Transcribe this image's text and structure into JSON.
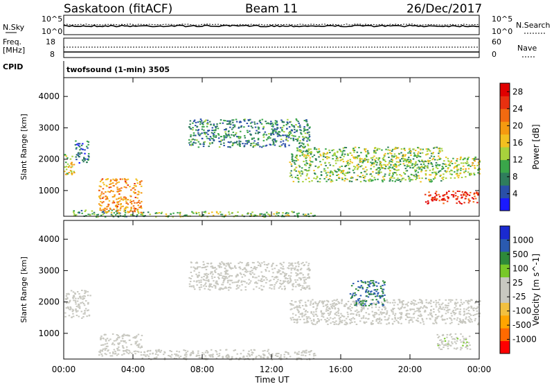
{
  "header": {
    "station": "Saskatoon (fitACF)",
    "beam": "Beam 11",
    "date": "26/Dec/2017"
  },
  "noise_panel": {
    "left_label": "N.Sky",
    "right_label": "N.Search",
    "ticks_left": [
      "10^5",
      "10^0"
    ],
    "ticks_right": [
      "10^5",
      "10^0"
    ]
  },
  "freq_panel": {
    "left_label_1": "Freq.",
    "left_label_2": "[MHz]",
    "right_label": "Nave",
    "ticks_left": [
      "18",
      "8"
    ],
    "ticks_right": [
      "60",
      "0"
    ]
  },
  "cpid_panel": {
    "label": "CPID",
    "text": "twofsound (1-min) 3505"
  },
  "axes": {
    "ylabel": "Slant Range [km]",
    "xlabel": "Time UT",
    "y_ticks": [
      "1000",
      "2000",
      "3000",
      "4000"
    ],
    "x_ticks": [
      "00:00",
      "04:00",
      "08:00",
      "12:00",
      "16:00",
      "20:00",
      "00:00"
    ]
  },
  "colors": {
    "power_scale": [
      "#1a1aff",
      "#2a4fa8",
      "#2f7d5c",
      "#3aa64a",
      "#a8d23c",
      "#f2c020",
      "#f59a10",
      "#f26a10",
      "#e83010",
      "#e00000"
    ],
    "velocity_scale": [
      "#ff0000",
      "#ff6a00",
      "#ffa500",
      "#f2c040",
      "#c8c8c0",
      "#c8c8c0",
      "#78c828",
      "#2e8a3a",
      "#2a5ab0",
      "#1a2ad0"
    ]
  },
  "chart_data": [
    {
      "type": "heatmap",
      "title": "Power",
      "colorbar_label": "Power [dB]",
      "colorbar_ticks": [
        "4",
        "8",
        "12",
        "16",
        "20",
        "24",
        "28"
      ],
      "colorbar_range": [
        0,
        30
      ],
      "xlabel": "",
      "ylabel": "Slant Range [km]",
      "x_range_hours": [
        0,
        24
      ],
      "y_range_km": [
        180,
        4600
      ],
      "bands": [
        {
          "t": [
            0.0,
            0.6
          ],
          "r": [
            1500,
            2200
          ],
          "value": 16
        },
        {
          "t": [
            0.6,
            1.5
          ],
          "r": [
            1900,
            2600
          ],
          "value": 6
        },
        {
          "t": [
            0.5,
            4.5
          ],
          "r": [
            180,
            400
          ],
          "value": 10
        },
        {
          "t": [
            2.0,
            4.5
          ],
          "r": [
            300,
            1400
          ],
          "value": 20
        },
        {
          "t": [
            4.5,
            14.5
          ],
          "r": [
            180,
            350
          ],
          "value": 12
        },
        {
          "t": [
            7.2,
            14.2
          ],
          "r": [
            2400,
            3300
          ],
          "value": 8
        },
        {
          "t": [
            13.0,
            22.0
          ],
          "r": [
            1300,
            2400
          ],
          "value": 12
        },
        {
          "t": [
            20.8,
            24.0
          ],
          "r": [
            600,
            1000
          ],
          "value": 26
        },
        {
          "t": [
            22.0,
            24.0
          ],
          "r": [
            1400,
            2100
          ],
          "value": 14
        }
      ]
    },
    {
      "type": "heatmap",
      "title": "Velocity",
      "colorbar_label": "Velocity [m s^-1]",
      "colorbar_ticks": [
        "1000",
        "500",
        "100",
        "25",
        "-25",
        "-100",
        "-500",
        "-1000"
      ],
      "colorbar_range": [
        -1000,
        1000
      ],
      "xlabel": "Time UT",
      "ylabel": "Slant Range [km]",
      "x_range_hours": [
        0,
        24
      ],
      "y_range_km": [
        180,
        4600
      ],
      "bands": [
        {
          "t": [
            0.0,
            1.5
          ],
          "r": [
            1500,
            2400
          ],
          "value": 0
        },
        {
          "t": [
            2.0,
            4.5
          ],
          "r": [
            300,
            1000
          ],
          "value": 120
        },
        {
          "t": [
            4.5,
            14.5
          ],
          "r": [
            180,
            500
          ],
          "value": -120
        },
        {
          "t": [
            7.2,
            14.2
          ],
          "r": [
            2400,
            3300
          ],
          "value": 0
        },
        {
          "t": [
            13.0,
            24.0
          ],
          "r": [
            1300,
            2100
          ],
          "value": 0
        },
        {
          "t": [
            16.5,
            18.5
          ],
          "r": [
            1900,
            2700
          ],
          "value": 600
        },
        {
          "t": [
            21.5,
            23.5
          ],
          "r": [
            500,
            1000
          ],
          "value": 150
        }
      ]
    }
  ]
}
